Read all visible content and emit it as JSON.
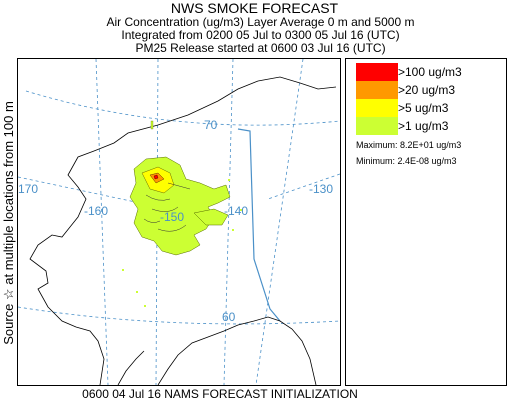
{
  "header": {
    "title": "NWS SMOKE FORECAST",
    "line1": "Air Concentration (ug/m3) Layer Average    0 m and  5000 m",
    "line2": "Integrated from 0200 05 Jul to 0300 05 Jul 16 (UTC)",
    "line3": "PM25 Release started at 0600 03 Jul 16 (UTC)"
  },
  "side_label": "Source ☆ at multiple locations     from    100 m",
  "map": {
    "grid_labels": {
      "lat_70": "70",
      "lat_60": "60",
      "lon_170": "-170",
      "lon_160": "-160",
      "lon_150": "-150",
      "lon_140": "-140",
      "lon_130": "-130"
    },
    "colors": {
      "coast": "#000000",
      "grid": "#4a90c8",
      "border": "#4a90c8"
    }
  },
  "legend": {
    "items": [
      {
        "label": ">100 ug/m3",
        "color": "#ff0000"
      },
      {
        "label": ">20 ug/m3",
        "color": "#ff9900"
      },
      {
        "label": ">5 ug/m3",
        "color": "#ffff00"
      },
      {
        "label": ">1 ug/m3",
        "color": "#ccff33"
      }
    ],
    "maximum": "Maximum: 8.2E+01 ug/m3",
    "minimum": "Minimum: 2.4E-08 ug/m3"
  },
  "footer": "0600 04 Jul 16 NAMS FORECAST INITIALIZATION"
}
